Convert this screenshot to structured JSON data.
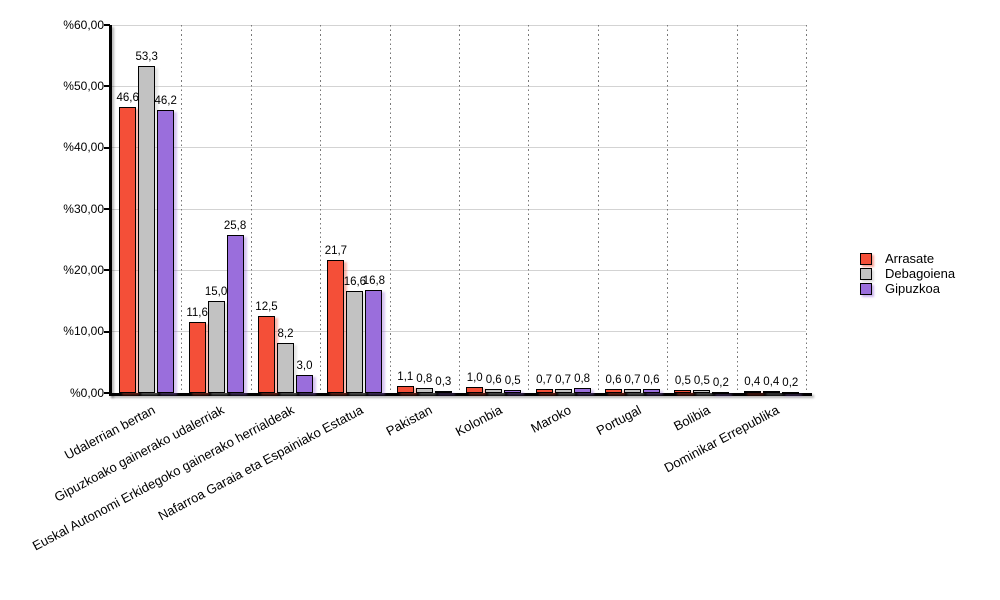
{
  "chart_data": {
    "type": "bar",
    "title": "",
    "categories": [
      "Udalerrian bertan",
      "Gipuzkoako gainerako udalerriak",
      "Euskal Autonomi Erkidegoko gainerako herrialdeak",
      "Nafarroa Garaia eta Espainiako Estatua",
      "Pakistan",
      "Kolonbia",
      "Maroko",
      "Portugal",
      "Bolibia",
      "Dominikar Errepublika"
    ],
    "series": [
      {
        "name": "Arrasate",
        "color": "#F44F38",
        "values": [
          46.6,
          11.6,
          12.5,
          21.7,
          1.1,
          1.0,
          0.7,
          0.6,
          0.5,
          0.4
        ]
      },
      {
        "name": "Debagoiena",
        "color": "#C2C2C2",
        "values": [
          53.3,
          15.0,
          8.2,
          16.6,
          0.8,
          0.6,
          0.7,
          0.7,
          0.5,
          0.4
        ]
      },
      {
        "name": "Gipuzkoa",
        "color": "#9A6EDC",
        "values": [
          46.2,
          25.8,
          3.0,
          16.8,
          0.3,
          0.5,
          0.8,
          0.6,
          0.2,
          0.2
        ]
      }
    ],
    "ylim": [
      0,
      60
    ],
    "y_ticks": [
      60,
      50,
      40,
      30,
      20,
      10,
      0
    ],
    "y_tick_labels": [
      "%60,00",
      "%50,00",
      "%40,00",
      "%30,00",
      "%20,00",
      "%10,00",
      "%0,00"
    ],
    "grid": true,
    "group_separators": "dotted",
    "legend_position": "right",
    "value_labels_shown": true,
    "decimal_separator": ","
  },
  "style": {
    "gridline_color": "#d3d3d3",
    "separator_color": "#777777",
    "axis_color": "#000000",
    "background_color": "#ffffff"
  }
}
